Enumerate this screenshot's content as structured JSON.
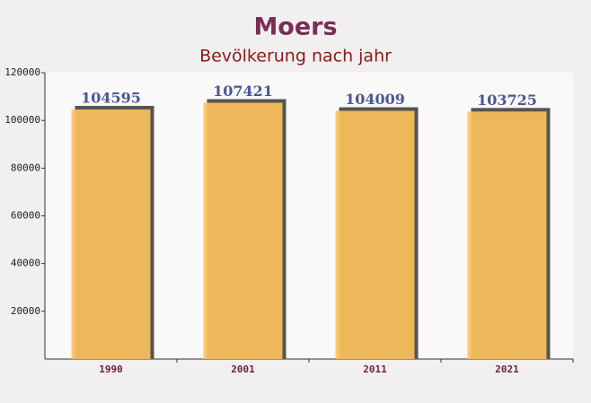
{
  "chart_data": {
    "type": "bar",
    "title": "Moers",
    "subtitle": "Bevölkerung nach jahr",
    "categories": [
      "1990",
      "2001",
      "2011",
      "2021"
    ],
    "values": [
      104595,
      107421,
      104009,
      103725
    ],
    "color": "#fdc35a",
    "ylim": [
      0,
      120000
    ],
    "yticks": [
      20000,
      40000,
      60000,
      80000,
      100000,
      120000
    ]
  }
}
